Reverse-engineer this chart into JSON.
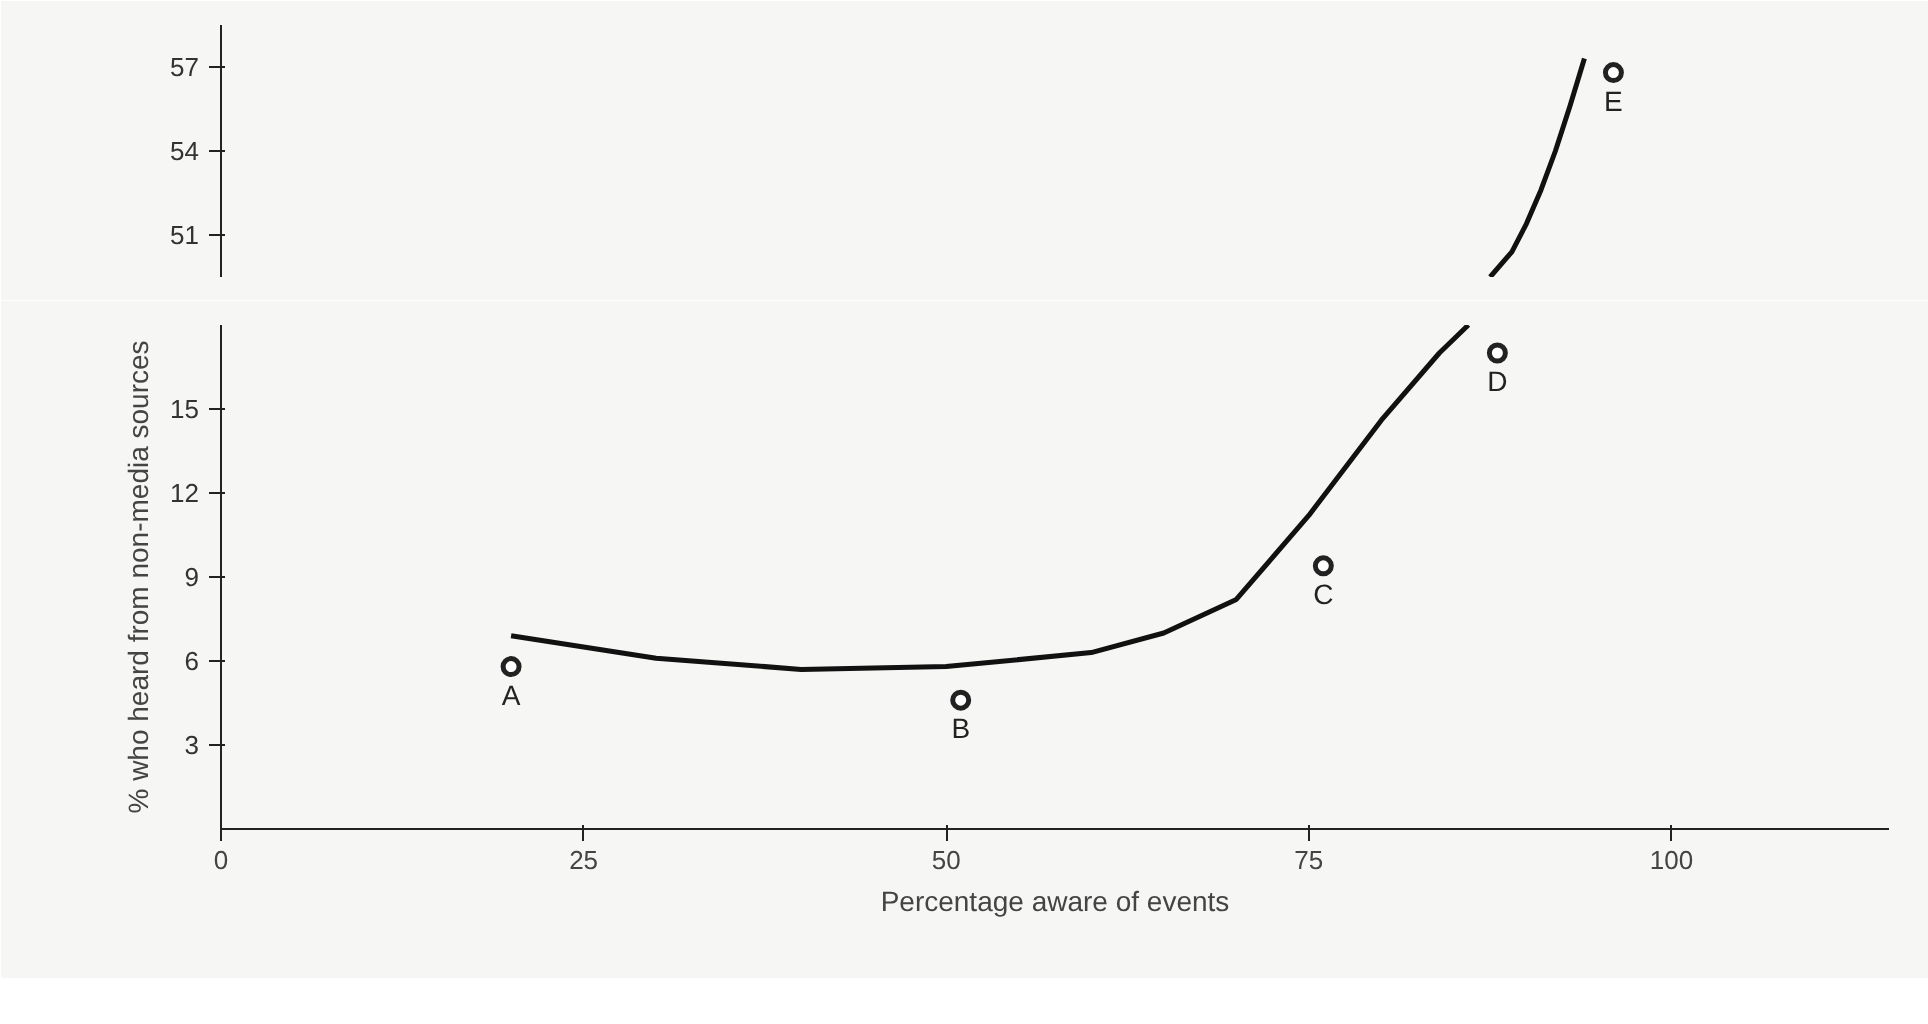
{
  "chart_data": [
    {
      "type": "scatter",
      "xlim": [
        0,
        115
      ],
      "ylim": [
        49.5,
        58.5
      ],
      "yticks": [
        51,
        54,
        57
      ],
      "tick_labels": "y",
      "grid": false,
      "series": [
        {
          "color": "#222222",
          "marker": "circle",
          "x": [
            96
          ],
          "values": [
            56.8
          ]
        },
        {
          "type": "line",
          "marker": "none",
          "color": "#111111",
          "x": [
            87.5,
            89,
            90,
            91,
            92,
            93,
            94
          ],
          "values": [
            49.5,
            50.4,
            51.4,
            52.6,
            54,
            55.6,
            57.3
          ]
        }
      ],
      "annotations": [
        {
          "text": "E",
          "x": 96,
          "y": 56.8
        }
      ]
    },
    {
      "type": "scatter",
      "xlabel": "Percentage aware of events",
      "ylabel": "% who heard from non-media sources",
      "xlim": [
        0,
        115
      ],
      "ylim": [
        0,
        18
      ],
      "xticks": [
        0,
        25,
        50,
        75,
        100
      ],
      "yticks": [
        3,
        6,
        9,
        12,
        15
      ],
      "grid": false,
      "series": [
        {
          "color": "#222222",
          "marker": "circle",
          "x": [
            20,
            51,
            76,
            88
          ],
          "values": [
            5.8,
            4.6,
            9.4,
            17.0
          ]
        },
        {
          "type": "line",
          "marker": "none",
          "color": "#111111",
          "x": [
            20,
            30,
            40,
            50,
            60,
            65,
            70,
            75,
            80,
            84,
            86
          ],
          "values": [
            6.9,
            6.1,
            5.7,
            5.8,
            6.3,
            7,
            8.2,
            11.2,
            14.6,
            17,
            18
          ]
        }
      ],
      "annotations": [
        {
          "text": "A",
          "x": 20,
          "y": 5.8
        },
        {
          "text": "B",
          "x": 51,
          "y": 4.6
        },
        {
          "text": "C",
          "x": 76,
          "y": 9.4
        },
        {
          "text": "D",
          "x": 88,
          "y": 17.0
        }
      ]
    }
  ]
}
